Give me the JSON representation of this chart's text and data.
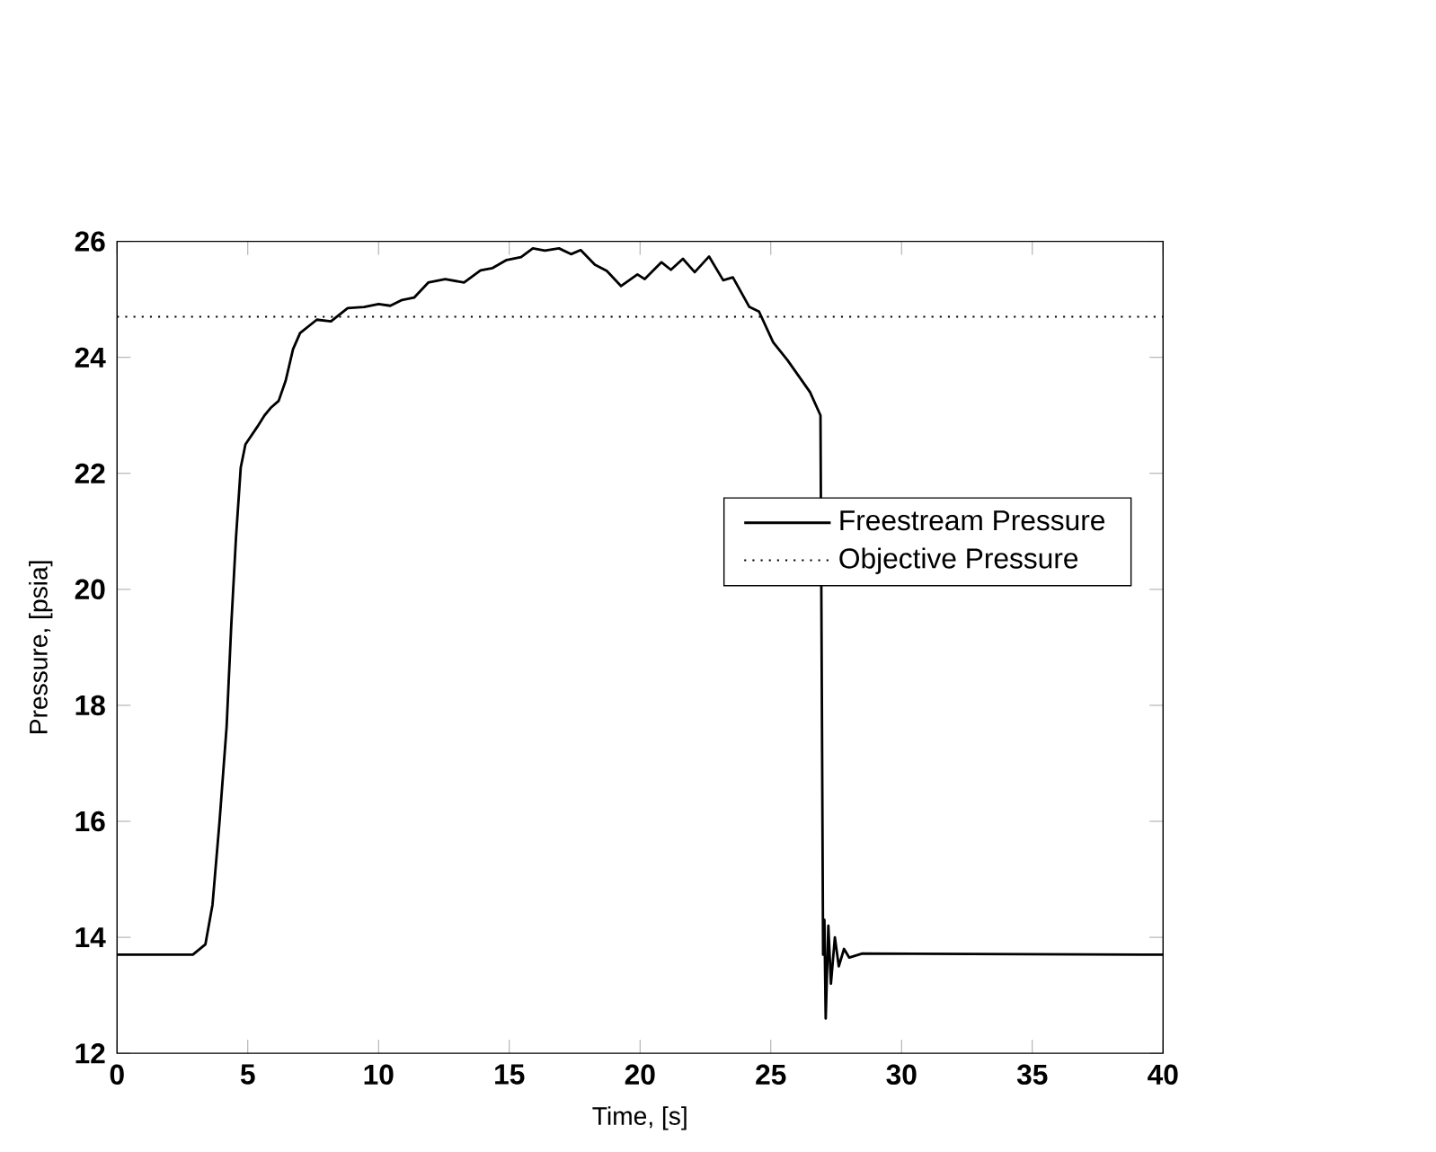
{
  "chart_data": {
    "type": "line",
    "xlabel": "Time, [s]",
    "ylabel": "Pressure, [psia]",
    "xlim": [
      0,
      40
    ],
    "ylim": [
      12,
      26
    ],
    "xticks": [
      0,
      5,
      10,
      15,
      20,
      25,
      30,
      35,
      40
    ],
    "yticks": [
      12,
      14,
      16,
      18,
      20,
      22,
      24,
      26
    ],
    "grid": false,
    "legend": "right",
    "marker": "none",
    "series": [
      {
        "name": "Freestream Pressure",
        "color": "#000000",
        "line_style": "solid",
        "x": [
          0,
          2.9,
          3.38,
          3.65,
          3.92,
          4.19,
          4.37,
          4.55,
          4.73,
          4.91,
          5.36,
          5.64,
          5.9,
          6.18,
          6.45,
          6.73,
          7.0,
          7.64,
          8.18,
          8.82,
          9.45,
          10.0,
          10.45,
          10.9,
          11.36,
          11.9,
          12.55,
          13.27,
          13.9,
          14.36,
          14.9,
          15.45,
          15.9,
          16.36,
          16.9,
          17.36,
          17.73,
          18.27,
          18.73,
          19.27,
          19.9,
          20.18,
          20.82,
          21.18,
          21.64,
          22.09,
          22.64,
          23.18,
          23.55,
          24.18,
          24.55,
          25.09,
          25.64,
          26.5,
          26.9,
          27.0,
          27.05,
          27.1,
          27.2,
          27.3,
          27.45,
          27.6,
          27.8,
          28.0,
          28.5,
          40
        ],
        "values": [
          13.7,
          13.7,
          13.88,
          14.56,
          16.0,
          17.63,
          19.4,
          20.9,
          22.1,
          22.5,
          22.8,
          23.0,
          23.14,
          23.25,
          23.6,
          24.14,
          24.42,
          24.65,
          24.62,
          24.85,
          24.87,
          24.92,
          24.89,
          24.99,
          25.03,
          25.29,
          25.35,
          25.29,
          25.5,
          25.54,
          25.68,
          25.73,
          25.88,
          25.84,
          25.88,
          25.78,
          25.85,
          25.6,
          25.49,
          25.23,
          25.43,
          25.35,
          25.64,
          25.51,
          25.7,
          25.47,
          25.74,
          25.33,
          25.38,
          24.87,
          24.79,
          24.26,
          23.95,
          23.4,
          23.0,
          13.7,
          14.3,
          12.6,
          14.2,
          13.2,
          14.0,
          13.5,
          13.8,
          13.65,
          13.72,
          13.7
        ]
      },
      {
        "name": "Objective Pressure",
        "color": "#000000",
        "line_style": "dotted",
        "x": [
          0,
          40
        ],
        "values": [
          24.7,
          24.7
        ]
      }
    ]
  }
}
